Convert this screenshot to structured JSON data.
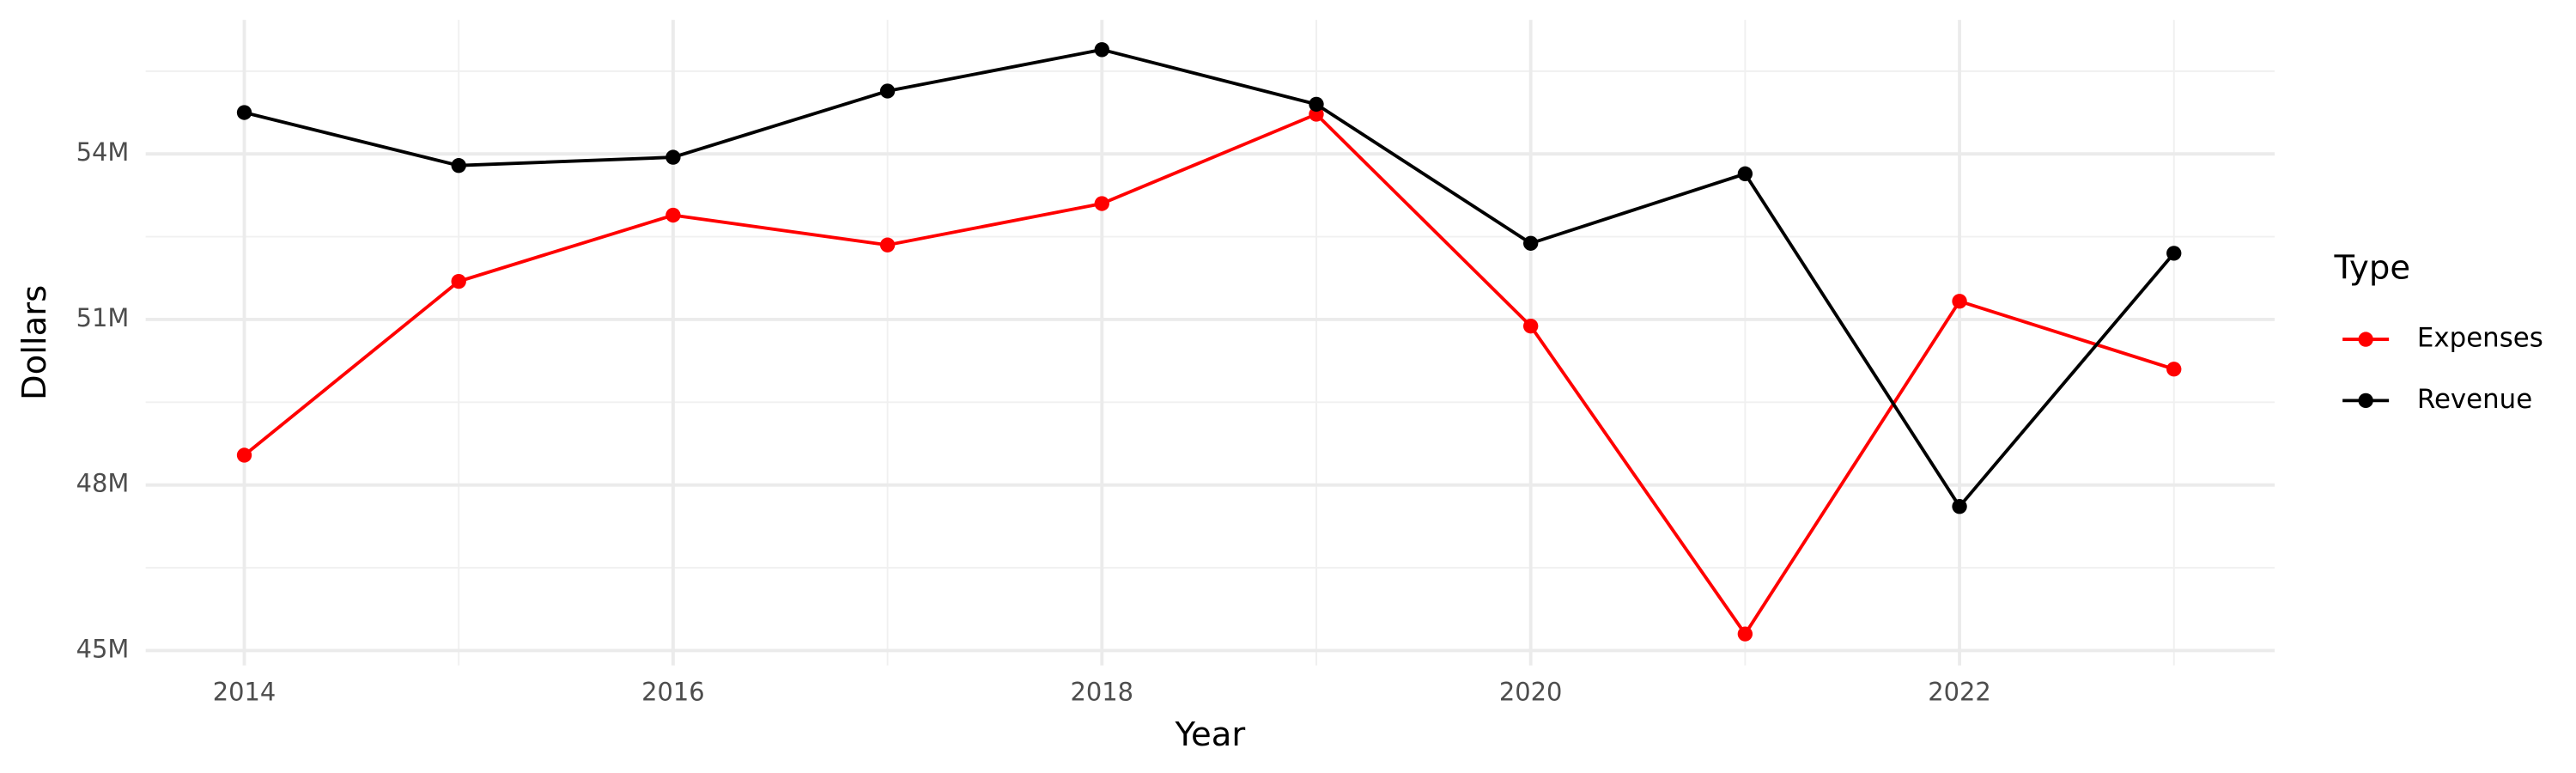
{
  "chart_data": {
    "type": "line",
    "x_label": "Year",
    "y_label": "Dollars",
    "legend_title": "Type",
    "x": [
      2014,
      2015,
      2016,
      2017,
      2018,
      2019,
      2020,
      2021,
      2022,
      2023
    ],
    "series": [
      {
        "name": "Expenses",
        "color": "#ff0000",
        "values": [
          48.54,
          51.69,
          52.89,
          52.35,
          53.1,
          54.72,
          50.88,
          45.3,
          51.33,
          50.1
        ]
      },
      {
        "name": "Revenue",
        "color": "#000000",
        "values": [
          54.75,
          53.79,
          53.94,
          55.14,
          55.89,
          54.9,
          52.38,
          53.64,
          47.61,
          52.2
        ]
      }
    ],
    "xlim": [
      2013.54,
      2023.47
    ],
    "ylim": [
      44.73,
      56.43
    ],
    "xticks": [
      2014,
      2016,
      2018,
      2020,
      2022
    ],
    "yticks": [
      {
        "value": 45,
        "label": "45M"
      },
      {
        "value": 48,
        "label": "48M"
      },
      {
        "value": 51,
        "label": "51M"
      },
      {
        "value": 54,
        "label": "54M"
      }
    ],
    "xminor": [
      2015,
      2017,
      2019,
      2021,
      2023
    ],
    "yminor": [
      46.5,
      49.5,
      52.5,
      55.5
    ],
    "grid": true,
    "legend_position": "right"
  }
}
